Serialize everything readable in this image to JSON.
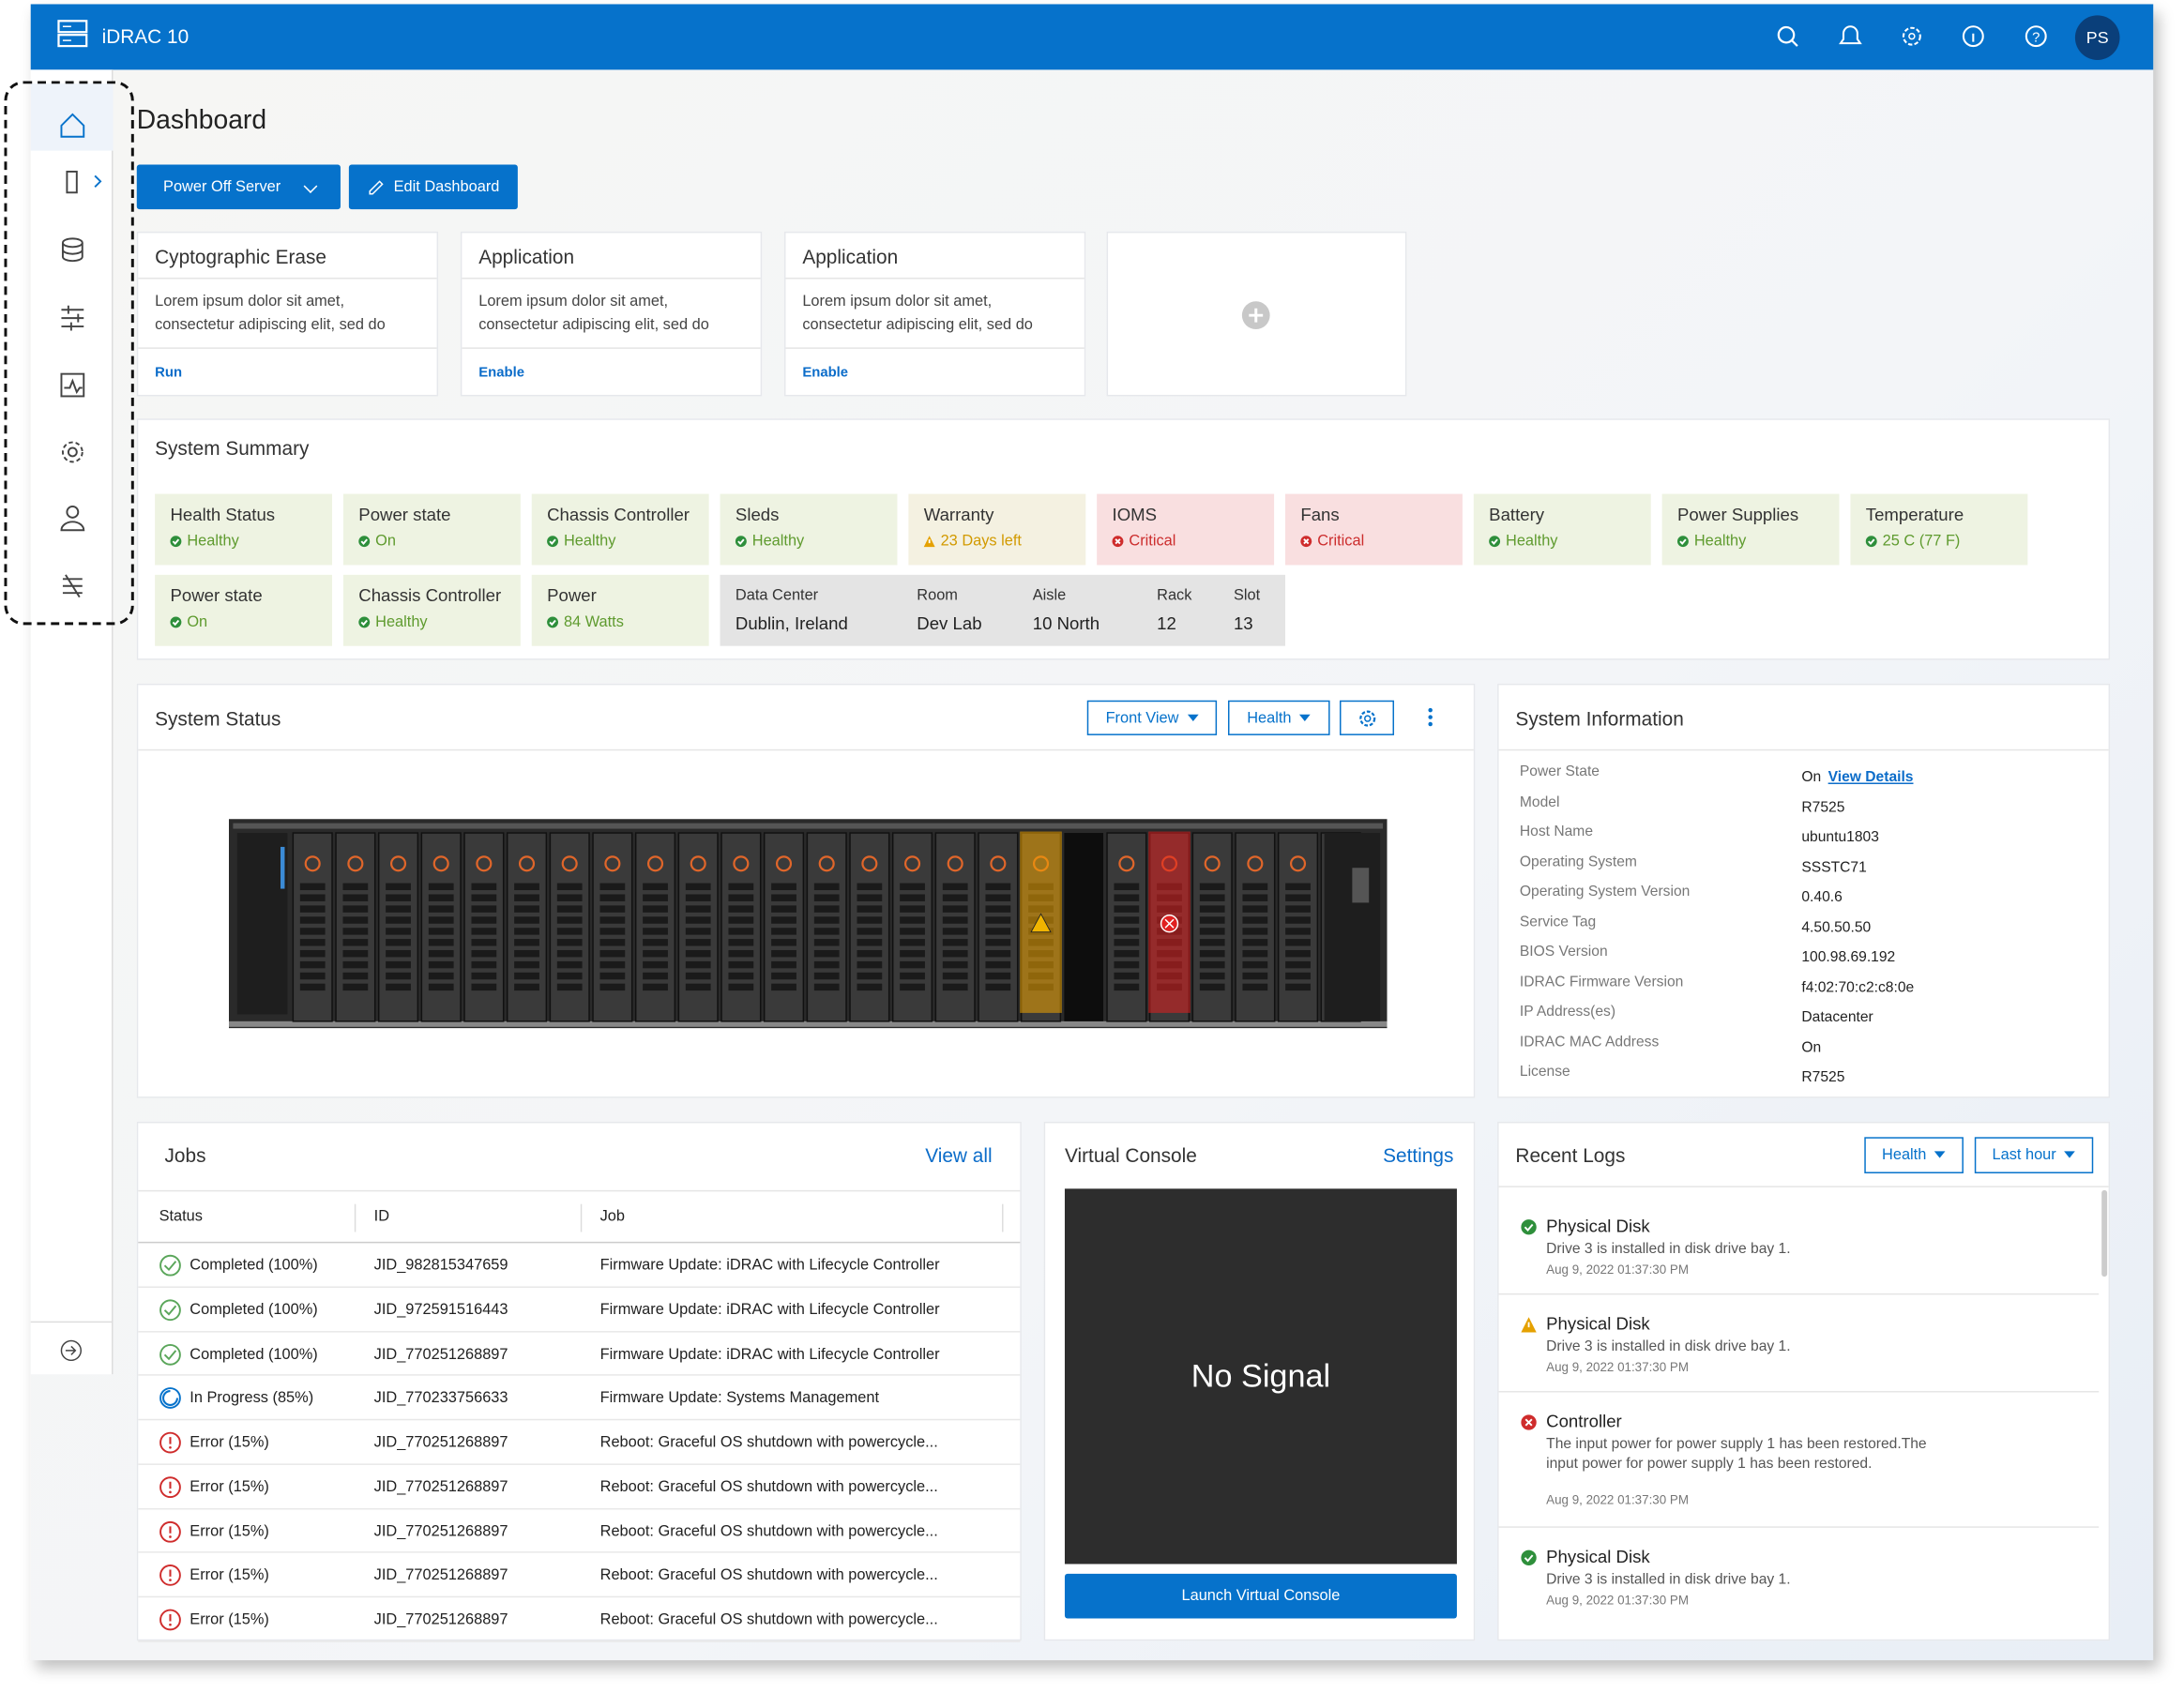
{
  "header": {
    "product": "iDRAC 10",
    "avatar": "PS"
  },
  "page_title": "Dashboard",
  "actions": [
    "Power Off Server",
    "Edit Dashboard"
  ],
  "cards": [
    {
      "title": "Cyptographic Erase",
      "body": "Lorem ipsum dolor sit amet, consectetur adipiscing elit, sed do",
      "action": "Run"
    },
    {
      "title": "Application",
      "body": "Lorem ipsum dolor sit amet, consectetur adipiscing elit, sed do",
      "action": "Enable"
    },
    {
      "title": "Application",
      "body": "Lorem ipsum dolor sit amet, consectetur adipiscing elit, sed do",
      "action": "Enable"
    }
  ],
  "system_summary": {
    "title": "System Summary",
    "tiles": [
      {
        "label": "Health Status",
        "status": "Healthy",
        "state": "ok"
      },
      {
        "label": "Power state",
        "status": "On",
        "state": "ok"
      },
      {
        "label": "Chassis Controller",
        "status": "Healthy",
        "state": "ok"
      },
      {
        "label": "Sleds",
        "status": "Healthy",
        "state": "ok"
      },
      {
        "label": "Warranty",
        "status": "23 Days left",
        "state": "warning"
      },
      {
        "label": "IOMS",
        "status": "Critical",
        "state": "critical"
      },
      {
        "label": "Fans",
        "status": "Critical",
        "state": "critical"
      },
      {
        "label": "Battery",
        "status": "Healthy",
        "state": "ok"
      },
      {
        "label": "Power Supplies",
        "status": "Healthy",
        "state": "ok"
      },
      {
        "label": "Temperature",
        "status": "25 C (77 F)",
        "state": "ok"
      },
      {
        "label": "Power state",
        "status": "On",
        "state": "ok"
      },
      {
        "label": "Chassis Controller",
        "status": "Healthy",
        "state": "ok"
      },
      {
        "label": "Power",
        "status": "84 Watts",
        "state": "ok"
      }
    ],
    "location": [
      {
        "label": "Data Center",
        "value": "Dublin, Ireland"
      },
      {
        "label": "Room",
        "value": "Dev Lab"
      },
      {
        "label": "Aisle",
        "value": "10 North"
      },
      {
        "label": "Rack",
        "value": "12"
      },
      {
        "label": "Slot",
        "value": "13"
      }
    ]
  },
  "system_status": {
    "title": "System Status",
    "buttons": [
      "Front View",
      "Health"
    ]
  },
  "system_information": {
    "title": "System Information",
    "link": "View Details",
    "rows": [
      [
        "Power State",
        "On"
      ],
      [
        "Model",
        "R7525"
      ],
      [
        "Host Name",
        "ubuntu1803"
      ],
      [
        "Operating System",
        "SSSTC71"
      ],
      [
        "Operating System Version",
        "0.40.6"
      ],
      [
        "Service Tag",
        "4.50.50.50"
      ],
      [
        "BIOS Version",
        "100.98.69.192"
      ],
      [
        "IDRAC Firmware Version",
        "f4:02:70:c2:c8:0e"
      ],
      [
        "IP Address(es)",
        "Datacenter"
      ],
      [
        "IDRAC MAC Address",
        "On"
      ],
      [
        "License",
        "R7525"
      ]
    ]
  },
  "jobs": {
    "title": "Jobs",
    "link": "View all",
    "columns": [
      "Status",
      "ID",
      "Job"
    ],
    "rows": [
      {
        "status": "Completed (100%)",
        "id": "JID_982815347659",
        "job": "Firmware Update: iDRAC with Lifecycle Controller",
        "state": "ok"
      },
      {
        "status": "Completed (100%)",
        "id": "JID_972591516443",
        "job": "Firmware Update: iDRAC with Lifecycle Controller",
        "state": "ok"
      },
      {
        "status": "Completed (100%)",
        "id": "JID_770251268897",
        "job": "Firmware Update: iDRAC with Lifecycle Controller",
        "state": "ok"
      },
      {
        "status": "In Progress (85%)",
        "id": "JID_770233756633",
        "job": "Firmware Update: Systems Management",
        "state": "progress"
      },
      {
        "status": "Error (15%)",
        "id": "JID_770251268897",
        "job": "Reboot: Graceful OS shutdown with powercycle...",
        "state": "error"
      },
      {
        "status": "Error (15%)",
        "id": "JID_770251268897",
        "job": "Reboot: Graceful OS shutdown with powercycle...",
        "state": "error"
      },
      {
        "status": "Error (15%)",
        "id": "JID_770251268897",
        "job": "Reboot: Graceful OS shutdown with powercycle...",
        "state": "error"
      },
      {
        "status": "Error (15%)",
        "id": "JID_770251268897",
        "job": "Reboot: Graceful OS shutdown with powercycle...",
        "state": "error"
      },
      {
        "status": "Error (15%)",
        "id": "JID_770251268897",
        "job": "Reboot: Graceful OS shutdown with powercycle...",
        "state": "error"
      }
    ]
  },
  "virtual_console": {
    "title": "Virtual Console",
    "link": "Settings",
    "screen": "No Signal",
    "button": "Launch Virtual Console"
  },
  "recent_logs": {
    "title": "Recent Logs",
    "filters": [
      "Health",
      "Last hour"
    ],
    "entries": [
      {
        "title": "Physical Disk",
        "message": "Drive 3 is installed in disk drive bay 1.",
        "time": "Aug 9, 2022 01:37:30 PM",
        "state": "ok"
      },
      {
        "title": "Physical Disk",
        "message": "Drive 3 is installed in disk drive bay 1.",
        "time": "Aug 9, 2022 01:37:30 PM",
        "state": "warning"
      },
      {
        "title": "Controller",
        "message": "The input power for power supply 1 has been restored.The input power for power supply 1 has been restored.",
        "time": "Aug 9, 2022 01:37:30 PM",
        "state": "critical"
      },
      {
        "title": "Physical Disk",
        "message": "Drive 3 is installed in disk drive bay 1.",
        "time": "Aug 9, 2022 01:37:30 PM",
        "state": "ok"
      }
    ]
  }
}
